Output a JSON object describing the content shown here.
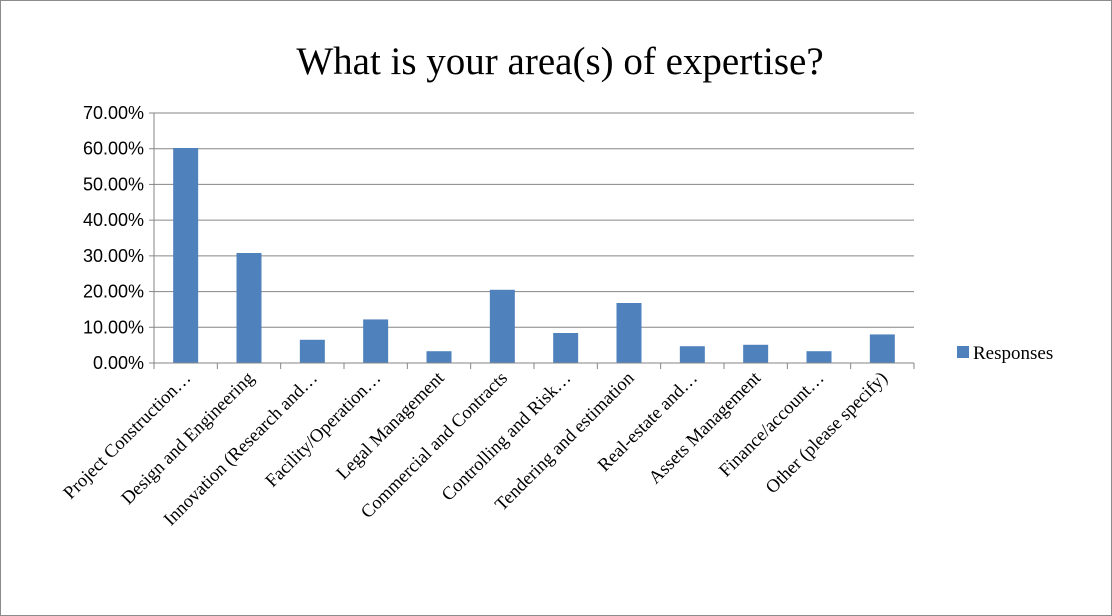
{
  "chart_data": {
    "type": "bar",
    "title": "What is your area(s) of expertise?",
    "xlabel": "",
    "ylabel": "",
    "categories": [
      "Project Construction…",
      "Design and Engineering",
      "Innovation (Research and…",
      "Facility/Operation…",
      "Legal Management",
      "Commercial and Contracts",
      "Controlling and Risk…",
      "Tendering and estimation",
      "Real-estate and…",
      "Assets Management",
      "Finance/account…",
      "Other (please specify)"
    ],
    "series": [
      {
        "name": "Responses",
        "values": [
          60.2,
          30.8,
          6.5,
          12.2,
          3.3,
          20.5,
          8.4,
          16.8,
          4.7,
          5.1,
          3.3,
          8.0
        ]
      }
    ],
    "ylim": [
      0,
      70
    ],
    "yticks": [
      "0.00%",
      "10.00%",
      "20.00%",
      "30.00%",
      "40.00%",
      "50.00%",
      "60.00%",
      "70.00%"
    ],
    "grid": true,
    "legend_position": "right",
    "colors": {
      "bar": "#4f81bd",
      "grid": "#868686",
      "axis": "#868686"
    }
  }
}
